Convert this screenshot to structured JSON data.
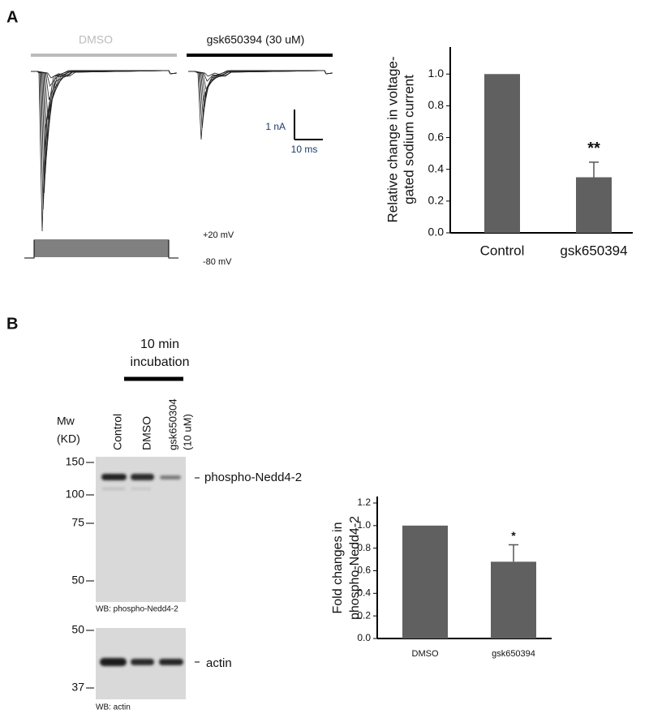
{
  "panel_labels": [
    "A",
    "B"
  ],
  "traces": {
    "control_label": "DMSO",
    "drug_label": "gsk650394 (30 uM)",
    "scale_current": "1 nA",
    "scale_time": "10 ms",
    "voltage_high": "+20 mV",
    "voltage_low": "-80 mV"
  },
  "blot": {
    "treatment": [
      "10 min",
      "incubation"
    ],
    "mw_header": [
      "Mw",
      "(KD)"
    ],
    "lanes": [
      "Control",
      "DMSO",
      [
        "gsk650304",
        "(10 uM)"
      ]
    ],
    "upper_markers": [
      "150",
      "100",
      "75",
      "50"
    ],
    "upper_band": "phospho-Nedd4-2",
    "upper_wb": "WB: phospho-Nedd4-2",
    "lower_markers": [
      "50",
      "37"
    ],
    "lower_band": "actin",
    "lower_wb": "WB: actin"
  },
  "chart_data": [
    {
      "type": "bar",
      "ylabel": [
        "Relative change in voltage-",
        "gated sodium current"
      ],
      "categories": [
        "Control",
        "gsk650394"
      ],
      "values": [
        1.0,
        0.35
      ],
      "errors": [
        null,
        0.095
      ],
      "significance": [
        null,
        "**"
      ],
      "color": "#606060",
      "ylim": [
        0,
        1.17
      ],
      "yticks": [
        {
          "value": 0,
          "label": "0.0"
        },
        0.2,
        0.4,
        0.6,
        0.8,
        {
          "value": 1,
          "label": "1.0"
        }
      ]
    },
    {
      "type": "bar",
      "ylabel": [
        "Fold changes in",
        "phospho-Nedd4-2"
      ],
      "categories": [
        "DMSO",
        "gsk650394"
      ],
      "values": [
        1.0,
        0.68
      ],
      "errors": [
        null,
        0.15
      ],
      "significance": [
        null,
        "*"
      ],
      "color": "#606060",
      "ylim": [
        0,
        1.2
      ],
      "yticks": [
        {
          "value": 0,
          "label": "0.0"
        },
        0.2,
        0.4,
        0.6,
        0.8,
        {
          "value": 1,
          "label": "1.0"
        },
        1.2
      ]
    }
  ]
}
